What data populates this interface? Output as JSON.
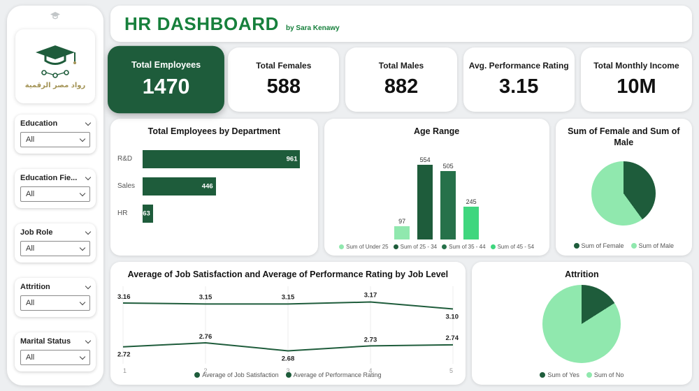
{
  "colors": {
    "accent_dark": "#1E5C3B",
    "accent_dark2": "#26714A",
    "accent_light": "#90E8AE",
    "accent_mid": "#3FD67E",
    "title_green": "#17803C",
    "page_bg": "#EDEFF1",
    "logo_gold": "#A39355"
  },
  "sidebar": {
    "logo_text": "رواد مصر الرقمية",
    "filters": [
      {
        "label": "Education",
        "value": "All"
      },
      {
        "label": "Education Fie...",
        "value": "All"
      },
      {
        "label": "Job Role",
        "value": "All"
      },
      {
        "label": "Attrition",
        "value": "All"
      },
      {
        "label": "Marital Status",
        "value": "All"
      }
    ]
  },
  "header": {
    "title": "HR DASHBOARD",
    "subtitle": "by Sara Kenawy"
  },
  "kpis": [
    {
      "label": "Total Employees",
      "value": "1470",
      "selected": true
    },
    {
      "label": "Total Females",
      "value": "588",
      "selected": false
    },
    {
      "label": "Total Males",
      "value": "882",
      "selected": false
    },
    {
      "label": "Avg. Performance Rating",
      "value": "3.15",
      "selected": false
    },
    {
      "label": "Total Monthly Income",
      "value": "10M",
      "selected": false
    }
  ],
  "chart_data": [
    {
      "type": "bar",
      "orientation": "horizontal",
      "title": "Total Employees by Department",
      "categories": [
        "R&D",
        "Sales",
        "HR"
      ],
      "values": [
        961,
        446,
        63
      ],
      "xlim": [
        0,
        1000
      ],
      "bar_color": "#1E5C3B"
    },
    {
      "type": "bar",
      "orientation": "vertical",
      "title": "Age Range",
      "categories": [
        "Sum of Under 25",
        "Sum of 25 - 34",
        "Sum of 35 - 44",
        "Sum of 45 - 54"
      ],
      "values": [
        97,
        554,
        505,
        245
      ],
      "colors": [
        "#90E8AE",
        "#1E5C3B",
        "#26714A",
        "#3FD67E"
      ],
      "ylim": [
        0,
        580
      ],
      "legend_position": "bottom"
    },
    {
      "type": "pie",
      "title": "Sum of Female and Sum of Male",
      "labels": [
        "Sum of Female",
        "Sum of Male"
      ],
      "values": [
        588,
        882
      ],
      "colors": [
        "#1E5C3B",
        "#90E8AE"
      ],
      "legend_position": "bottom"
    },
    {
      "type": "line",
      "title": "Average of Job Satisfaction and Average of Performance Rating by Job Level",
      "x": [
        1,
        2,
        3,
        4,
        5
      ],
      "xlabel": "Job Level",
      "series": [
        {
          "name": "Average of Job Satisfaction",
          "values": [
            2.72,
            2.76,
            2.68,
            2.73,
            2.74
          ]
        },
        {
          "name": "Average of Performance Rating",
          "values": [
            3.16,
            3.15,
            3.15,
            3.17,
            3.1
          ]
        }
      ],
      "label_dy": [
        [
          14,
          -6,
          14,
          -6,
          -7
        ],
        [
          -6,
          -7,
          -7,
          -7,
          14
        ]
      ],
      "ylim": [
        2.55,
        3.3
      ],
      "color": "#1E5C3B",
      "grid": true,
      "legend_position": "bottom"
    },
    {
      "type": "pie",
      "title": "Attrition",
      "labels": [
        "Sum of Yes",
        "Sum of No"
      ],
      "values": [
        16,
        84
      ],
      "colors": [
        "#1E5C3B",
        "#90E8AE"
      ],
      "legend_position": "bottom"
    }
  ]
}
